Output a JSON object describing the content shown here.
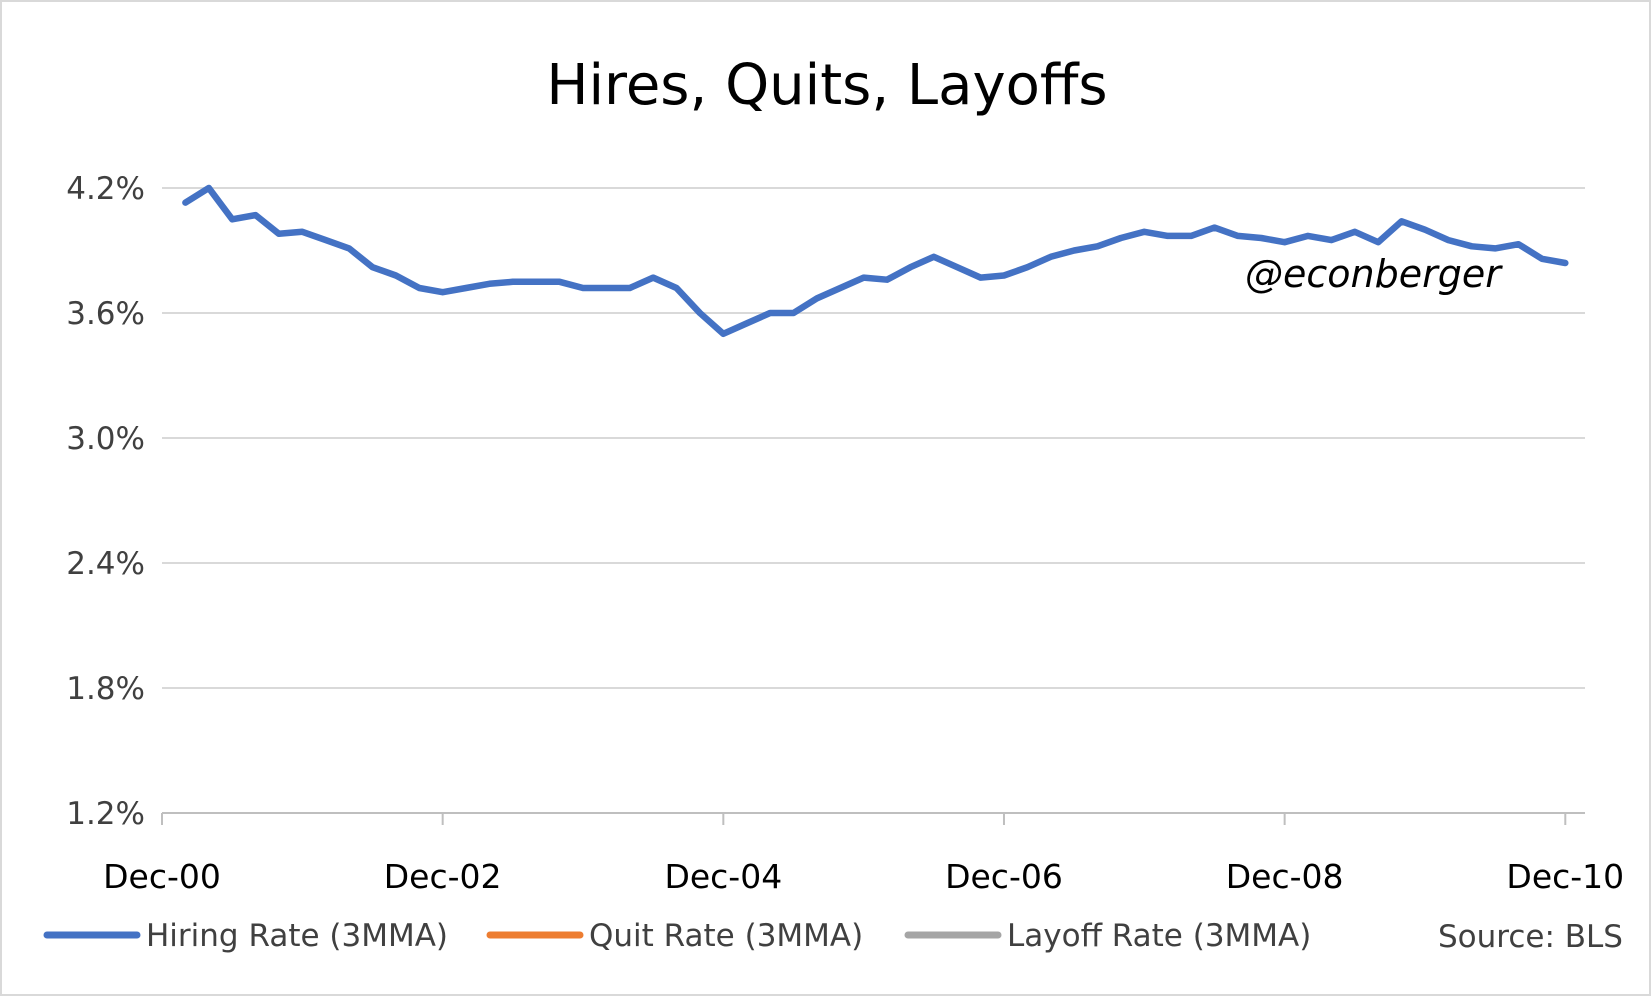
{
  "chart_data": {
    "type": "line",
    "title": "Hires, Quits, Layoffs",
    "watermark": "@econberger",
    "source": "Source: BLS",
    "xlabel": "",
    "ylabel": "",
    "ylim": [
      1.2,
      4.2
    ],
    "y_ticks": [
      "1.2%",
      "1.8%",
      "2.4%",
      "3.0%",
      "3.6%",
      "4.2%"
    ],
    "x_ticks": [
      "Dec-00",
      "Dec-02",
      "Dec-04",
      "Dec-06",
      "Dec-08",
      "Dec-10"
    ],
    "x_range_months": [
      0,
      121
    ],
    "legend_position": "bottom",
    "grid": true,
    "series": [
      {
        "name": "Hiring Rate (3MMA)",
        "color": "#4472c4",
        "style": "solid",
        "values": [
          [
            2,
            4.13
          ],
          [
            4,
            4.2
          ],
          [
            6,
            4.05
          ],
          [
            8,
            4.07
          ],
          [
            10,
            3.98
          ],
          [
            12,
            3.99
          ],
          [
            14,
            3.95
          ],
          [
            16,
            3.91
          ],
          [
            18,
            3.82
          ],
          [
            20,
            3.78
          ],
          [
            22,
            3.72
          ],
          [
            24,
            3.7
          ],
          [
            26,
            3.72
          ],
          [
            28,
            3.74
          ],
          [
            30,
            3.75
          ],
          [
            32,
            3.75
          ],
          [
            34,
            3.75
          ],
          [
            36,
            3.72
          ],
          [
            38,
            3.72
          ],
          [
            40,
            3.72
          ],
          [
            42,
            3.77
          ],
          [
            44,
            3.72
          ],
          [
            46,
            3.6
          ],
          [
            48,
            3.5
          ],
          [
            50,
            3.55
          ],
          [
            52,
            3.6
          ],
          [
            54,
            3.6
          ],
          [
            56,
            3.67
          ],
          [
            58,
            3.72
          ],
          [
            60,
            3.77
          ],
          [
            62,
            3.76
          ],
          [
            64,
            3.82
          ],
          [
            66,
            3.87
          ],
          [
            68,
            3.82
          ],
          [
            70,
            3.77
          ],
          [
            72,
            3.78
          ],
          [
            74,
            3.82
          ],
          [
            76,
            3.87
          ],
          [
            78,
            3.9
          ],
          [
            80,
            3.92
          ],
          [
            82,
            3.96
          ],
          [
            84,
            3.99
          ],
          [
            86,
            3.97
          ],
          [
            88,
            3.97
          ],
          [
            90,
            4.01
          ],
          [
            92,
            3.97
          ],
          [
            94,
            3.96
          ],
          [
            96,
            3.94
          ],
          [
            98,
            3.97
          ],
          [
            100,
            3.95
          ],
          [
            102,
            3.99
          ],
          [
            104,
            3.94
          ],
          [
            106,
            4.04
          ],
          [
            108,
            4.0
          ],
          [
            110,
            3.95
          ],
          [
            112,
            3.92
          ],
          [
            114,
            3.91
          ],
          [
            116,
            3.93
          ],
          [
            118,
            3.86
          ],
          [
            120,
            3.84
          ]
        ]
      },
      {
        "name": "Quit Rate (3MMA)",
        "color": "#ed7d31",
        "style": "solid",
        "values": []
      },
      {
        "name": "Layoff Rate (3MMA)",
        "color": "#a5a5a5",
        "style": "solid",
        "values": []
      }
    ]
  }
}
